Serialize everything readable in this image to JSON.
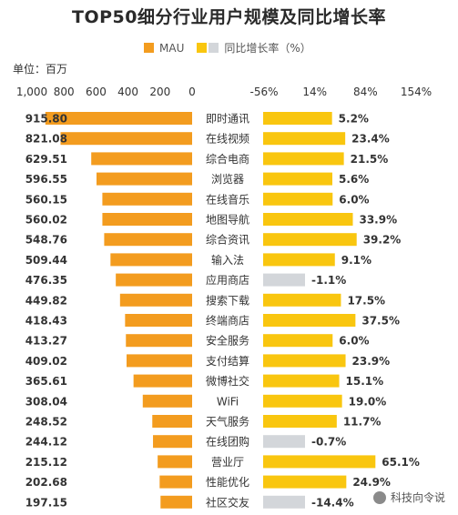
{
  "chart_data": {
    "type": "bar",
    "title": "TOP50细分行业用户规模及同比增长率",
    "unit": "单位：百万",
    "legend": [
      "MAU",
      "同比增长率（%）"
    ],
    "left_axis": {
      "ticks": [
        "1,000",
        "800",
        "600",
        "400",
        "200",
        "0"
      ],
      "range": [
        0,
        1000
      ],
      "direction": "reversed"
    },
    "right_axis": {
      "ticks": [
        "-56%",
        "14%",
        "84%",
        "154%"
      ],
      "range": [
        -56,
        154
      ]
    },
    "colors": {
      "mau": "#f39c1f",
      "growth_positive": "#f9c60f",
      "growth_negative": "#d3d6da"
    },
    "categories": [
      "即时通讯",
      "在线视频",
      "综合电商",
      "浏览器",
      "在线音乐",
      "地图导航",
      "综合资讯",
      "输入法",
      "应用商店",
      "搜索下载",
      "终端商店",
      "安全服务",
      "支付结算",
      "微博社交",
      "WiFi",
      "天气服务",
      "在线团购",
      "营业厅",
      "性能优化",
      "社区交友"
    ],
    "series": [
      {
        "name": "MAU",
        "values": [
          915.8,
          821.08,
          629.51,
          596.55,
          560.15,
          560.02,
          548.76,
          509.44,
          476.35,
          449.82,
          418.43,
          413.27,
          409.02,
          365.61,
          308.04,
          248.52,
          244.12,
          215.12,
          202.68,
          197.15
        ],
        "labels": [
          "915.80",
          "821.08",
          "629.51",
          "596.55",
          "560.15",
          "560.02",
          "548.76",
          "509.44",
          "476.35",
          "449.82",
          "418.43",
          "413.27",
          "409.02",
          "365.61",
          "308.04",
          "248.52",
          "244.12",
          "215.12",
          "202.68",
          "197.15"
        ]
      },
      {
        "name": "同比增长率（%）",
        "values": [
          5.2,
          23.4,
          21.5,
          5.6,
          6.0,
          33.9,
          39.2,
          9.1,
          -1.1,
          17.5,
          37.5,
          6.0,
          23.9,
          15.1,
          19.0,
          11.7,
          -0.7,
          65.1,
          24.9,
          -14.4
        ],
        "labels": [
          "5.2%",
          "23.4%",
          "21.5%",
          "5.6%",
          "6.0%",
          "33.9%",
          "39.2%",
          "9.1%",
          "-1.1%",
          "17.5%",
          "37.5%",
          "6.0%",
          "23.9%",
          "15.1%",
          "19.0%",
          "11.7%",
          "-0.7%",
          "65.1%",
          "24.9%",
          "-14.4%"
        ]
      }
    ]
  },
  "watermark": "科技向令说"
}
